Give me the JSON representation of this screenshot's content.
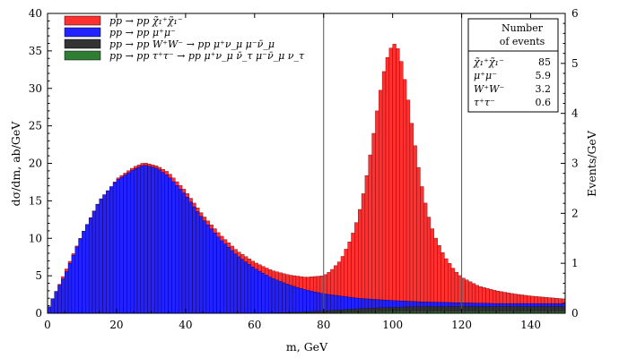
{
  "chart_data": {
    "type": "bar",
    "xlabel": "m, GeV",
    "ylabel": "dσ/dm, ab/GeV",
    "y2label": "Events/GeV",
    "xlim": [
      0,
      150
    ],
    "ylim": [
      0,
      40
    ],
    "y2lim": [
      0,
      6
    ],
    "xticks": [
      "0",
      "20",
      "40",
      "60",
      "80",
      "100",
      "120",
      "140"
    ],
    "yticks": [
      "0",
      "5",
      "10",
      "15",
      "20",
      "25",
      "30",
      "35",
      "40"
    ],
    "y2ticks": [
      "0",
      "1",
      "2",
      "3",
      "4",
      "5",
      "6"
    ],
    "bin_width": 1,
    "vertical_lines": [
      80,
      120
    ],
    "legend_position": "top-left",
    "series": [
      {
        "name": "pp → pp χ̃₁⁺χ̃₁⁻",
        "color": "#ff3030",
        "kind": "stacked-top"
      },
      {
        "name": "pp → pp μ⁺μ⁻",
        "color": "#2222ff",
        "kind": "stacked"
      },
      {
        "name": "pp → pp W⁺W⁻ → pp μ⁺ν_μ μ⁻ν̄_μ",
        "color": "#333333",
        "kind": "stacked"
      },
      {
        "name": "pp → pp τ⁺τ⁻ → pp μ⁺ν_μ ν̄_τ μ⁻ν̄_μ ν_τ",
        "color": "#2e7d32",
        "kind": "stacked"
      }
    ],
    "series_points": {
      "mumu_x": [
        0,
        2,
        5,
        10,
        15,
        20,
        25,
        28,
        32,
        35,
        40,
        45,
        50,
        55,
        60,
        65,
        70,
        75,
        80,
        90,
        100,
        110,
        120,
        130,
        140,
        150
      ],
      "mumu_y": [
        0.3,
        2.5,
        5,
        10.5,
        15,
        17.7,
        19.2,
        19.8,
        19.3,
        18.3,
        15.8,
        12.6,
        9.9,
        7.7,
        6.0,
        4.7,
        3.8,
        3.1,
        2.6,
        2.0,
        1.7,
        1.5,
        1.4,
        1.3,
        1.3,
        1.3
      ],
      "ww_x": [
        60,
        70,
        80,
        90,
        100,
        110,
        120,
        130,
        140,
        150
      ],
      "ww_y": [
        0,
        0.1,
        0.3,
        0.6,
        0.8,
        0.9,
        0.9,
        0.9,
        0.9,
        0.9
      ],
      "tautau_x": [
        60,
        80,
        100,
        120,
        150
      ],
      "tautau_y": [
        0,
        0.1,
        0.2,
        0.2,
        0.2
      ],
      "total_x": [
        0,
        10,
        20,
        25,
        28,
        32,
        35,
        40,
        45,
        50,
        55,
        60,
        65,
        70,
        75,
        80,
        82,
        85,
        88,
        90,
        92,
        94,
        96,
        98,
        100,
        101,
        102,
        104,
        106,
        108,
        110,
        112,
        115,
        118,
        120,
        125,
        130,
        135,
        140,
        145,
        150
      ],
      "total_y": [
        0.3,
        10.5,
        17.9,
        19.5,
        20.1,
        19.6,
        18.8,
        16.3,
        13.1,
        10.5,
        8.3,
        6.8,
        5.7,
        5.1,
        4.8,
        5.0,
        5.6,
        7.1,
        10.0,
        12.8,
        17.0,
        22.5,
        28.5,
        33.5,
        36.0,
        35.8,
        34.8,
        30.0,
        23.8,
        18.0,
        13.6,
        10.5,
        7.6,
        5.7,
        4.8,
        3.6,
        3.0,
        2.6,
        2.3,
        2.1,
        1.9
      ]
    },
    "table": {
      "header": [
        "Number",
        "of events"
      ],
      "rows": [
        {
          "label": "χ̃₁⁺χ̃₁⁻",
          "value": "85"
        },
        {
          "label": "μ⁺μ⁻",
          "value": "5.9"
        },
        {
          "label": "W⁺W⁻",
          "value": "3.2"
        },
        {
          "label": "τ⁺τ⁻",
          "value": "0.6"
        }
      ]
    }
  }
}
